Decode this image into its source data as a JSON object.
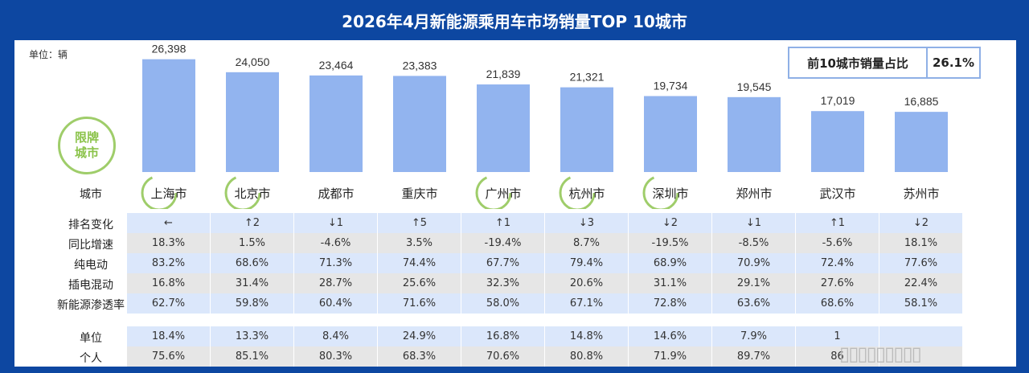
{
  "title": "2026年4月新能源乘用车市场销量TOP 10城市",
  "unit_label": "单位：辆",
  "share": {
    "label": "前10城市销量占比",
    "value": "26.1%"
  },
  "badge": {
    "line1": "限牌",
    "line2": "城市"
  },
  "colors": {
    "header_bg": "#0d47a1",
    "bar": "#92b4ef",
    "badge": "#9fcd6a",
    "row_blue": "#dbe7fb",
    "row_gray": "#e6e6e6"
  },
  "row_labels": {
    "city": "城市",
    "rank": "排名变化",
    "yoy": "同比增速",
    "bev": "纯电动",
    "phev": "插电混动",
    "penetration": "新能源渗透率",
    "unit": "单位",
    "personal": "个人"
  },
  "chart_data": {
    "type": "bar",
    "categories": [
      "上海市",
      "北京市",
      "成都市",
      "重庆市",
      "广州市",
      "杭州市",
      "深圳市",
      "郑州市",
      "武汉市",
      "苏州市"
    ],
    "values": [
      26398,
      24050,
      23464,
      23383,
      21839,
      21321,
      19734,
      19545,
      17019,
      16885
    ],
    "value_labels": [
      "26,398",
      "24,050",
      "23,464",
      "23,383",
      "21,839",
      "21,321",
      "19,734",
      "19,545",
      "17,019",
      "16,885"
    ],
    "restricted": [
      true,
      true,
      false,
      false,
      true,
      true,
      true,
      false,
      false,
      false
    ],
    "ylim": [
      0,
      30000
    ],
    "xlabel": "城市",
    "ylabel": ""
  },
  "table": {
    "rank": [
      "←",
      "↑2",
      "↓1",
      "↑5",
      "↑1",
      "↓3",
      "↓2",
      "↓1",
      "↑1",
      "↓2"
    ],
    "yoy": [
      "18.3%",
      "1.5%",
      "-4.6%",
      "3.5%",
      "-19.4%",
      "8.7%",
      "-19.5%",
      "-8.5%",
      "-5.6%",
      "18.1%"
    ],
    "bev": [
      "83.2%",
      "68.6%",
      "71.3%",
      "74.4%",
      "67.7%",
      "79.4%",
      "68.9%",
      "70.9%",
      "72.4%",
      "77.6%"
    ],
    "phev": [
      "16.8%",
      "31.4%",
      "28.7%",
      "25.6%",
      "32.3%",
      "20.6%",
      "31.1%",
      "29.1%",
      "27.6%",
      "22.4%"
    ],
    "penetration": [
      "62.7%",
      "59.8%",
      "60.4%",
      "71.6%",
      "58.0%",
      "67.1%",
      "72.8%",
      "63.6%",
      "68.6%",
      "58.1%"
    ],
    "unit": [
      "18.4%",
      "13.3%",
      "8.4%",
      "24.9%",
      "16.8%",
      "14.8%",
      "14.6%",
      "7.9%",
      "1",
      ""
    ],
    "personal": [
      "75.6%",
      "85.1%",
      "80.3%",
      "68.3%",
      "70.6%",
      "80.8%",
      "71.9%",
      "89.7%",
      "86",
      ""
    ]
  },
  "watermark": "▯▯▯▯▯▯▯▯▯"
}
